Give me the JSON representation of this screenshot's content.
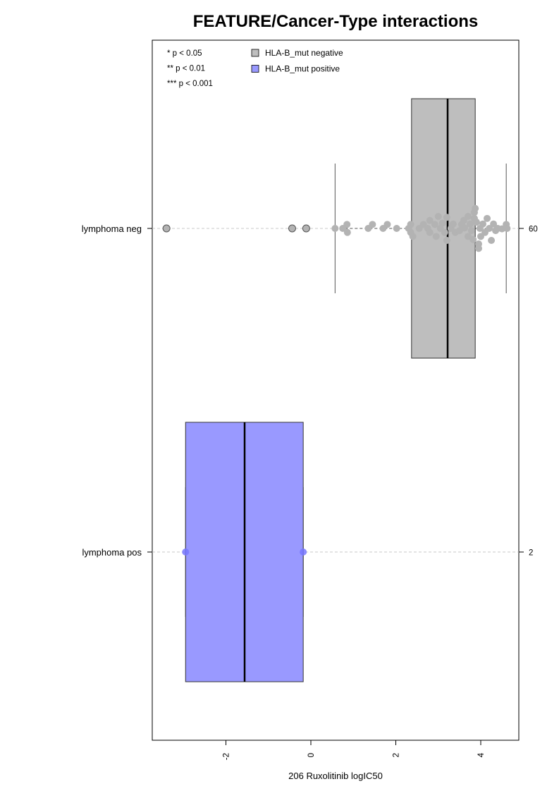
{
  "chart_data": {
    "type": "box",
    "title": "FEATURE/Cancer-Type interactions",
    "xlabel": "206 Ruxolitinib logIC50",
    "ylabel": "",
    "xlim": [
      -3.75,
      4.92
    ],
    "x_ticks": [
      -2,
      0,
      2,
      4
    ],
    "x_tick_labels": [
      "-2",
      "0",
      "2",
      "4"
    ],
    "significance_legend": [
      "* p < 0.05",
      "** p < 0.01",
      "*** p < 0.001"
    ],
    "legend": [
      {
        "label": "HLA-B_mut negative",
        "color": "#bebebe"
      },
      {
        "label": "HLA-B_mut positive",
        "color": "#9999ff"
      }
    ],
    "groups": [
      {
        "label": "lymphoma neg",
        "n": "60",
        "box_color": "#bebebe",
        "point_color": "#b3b3b3",
        "stats": {
          "whisker_low": 0.57,
          "q1": 2.37,
          "median": 3.22,
          "q3": 3.87,
          "whisker_high": 4.6
        },
        "points": [
          [
            -3.4,
            0
          ],
          [
            -0.44,
            0
          ],
          [
            -0.11,
            0
          ],
          [
            0.57,
            0
          ],
          [
            0.75,
            0
          ],
          [
            0.85,
            0.18
          ],
          [
            0.86,
            -0.18
          ],
          [
            1.35,
            0
          ],
          [
            1.45,
            0.18
          ],
          [
            1.7,
            0
          ],
          [
            1.8,
            0.18
          ],
          [
            2.02,
            0
          ],
          [
            2.3,
            0
          ],
          [
            2.35,
            0.18
          ],
          [
            2.35,
            -0.18
          ],
          [
            2.4,
            -0.36
          ],
          [
            2.55,
            0
          ],
          [
            2.65,
            0.18
          ],
          [
            2.75,
            0
          ],
          [
            2.8,
            0.36
          ],
          [
            2.8,
            -0.18
          ],
          [
            2.92,
            0.18
          ],
          [
            2.95,
            -0.36
          ],
          [
            3.0,
            0.54
          ],
          [
            3.05,
            0
          ],
          [
            3.1,
            0.24
          ],
          [
            3.15,
            -0.18
          ],
          [
            3.2,
            0.5
          ],
          [
            3.2,
            -0.54
          ],
          [
            3.3,
            0
          ],
          [
            3.35,
            0.2
          ],
          [
            3.4,
            -0.18
          ],
          [
            3.5,
            -0.1
          ],
          [
            3.55,
            0.18
          ],
          [
            3.6,
            0.36
          ],
          [
            3.62,
            0.02
          ],
          [
            3.7,
            0.54
          ],
          [
            3.7,
            -0.36
          ],
          [
            3.75,
            0.2
          ],
          [
            3.78,
            -0.1
          ],
          [
            3.82,
            -0.5
          ],
          [
            3.85,
            0.45
          ],
          [
            3.85,
            0.72
          ],
          [
            3.87,
            0.9
          ],
          [
            3.9,
            0.28
          ],
          [
            3.95,
            -0.7
          ],
          [
            3.95,
            -0.9
          ],
          [
            3.98,
            0
          ],
          [
            4.0,
            -0.36
          ],
          [
            4.05,
            0.2
          ],
          [
            4.1,
            -0.18
          ],
          [
            4.15,
            0.45
          ],
          [
            4.2,
            0
          ],
          [
            4.25,
            -0.54
          ],
          [
            4.3,
            0.2
          ],
          [
            4.35,
            -0.1
          ],
          [
            4.4,
            0
          ],
          [
            4.5,
            -0.02
          ],
          [
            4.6,
            0.18
          ],
          [
            4.62,
            0
          ]
        ]
      },
      {
        "label": "lymphoma pos",
        "n": "2",
        "box_color": "#9999ff",
        "point_color": "#7777ff",
        "stats": {
          "whisker_low": -2.95,
          "q1": -2.95,
          "median": -1.56,
          "q3": -0.18,
          "whisker_high": -0.18
        },
        "points": [
          [
            -2.95,
            0
          ],
          [
            -0.18,
            0
          ]
        ]
      }
    ]
  }
}
